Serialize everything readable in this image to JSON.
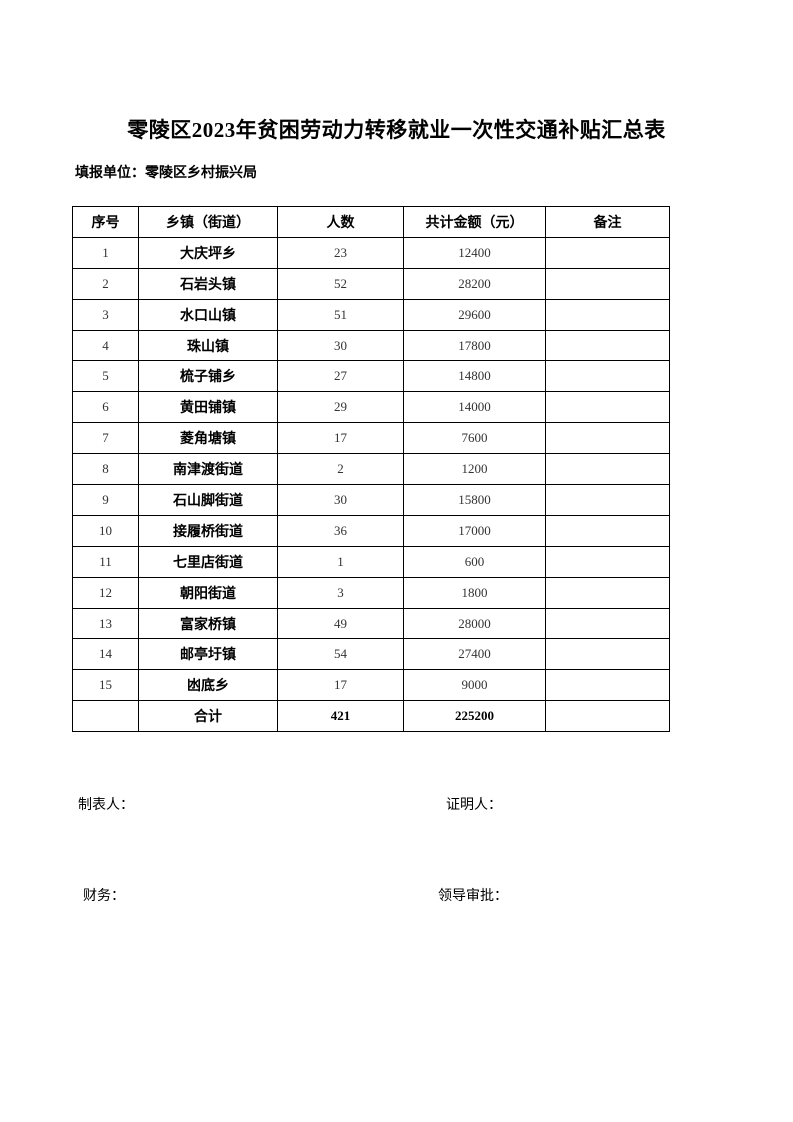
{
  "title": "零陵区2023年贫困劳动力转移就业一次性交通补贴汇总表",
  "unit": "填报单位：零陵区乡村振兴局",
  "table": {
    "headers": [
      "序号",
      "乡镇（街道）",
      "人数",
      "共计金额（元）",
      "备注"
    ],
    "rows": [
      [
        "1",
        "大庆坪乡",
        "23",
        "12400",
        ""
      ],
      [
        "2",
        "石岩头镇",
        "52",
        "28200",
        ""
      ],
      [
        "3",
        "水口山镇",
        "51",
        "29600",
        ""
      ],
      [
        "4",
        "珠山镇",
        "30",
        "17800",
        ""
      ],
      [
        "5",
        "梳子铺乡",
        "27",
        "14800",
        ""
      ],
      [
        "6",
        "黄田铺镇",
        "29",
        "14000",
        ""
      ],
      [
        "7",
        "菱角塘镇",
        "17",
        "7600",
        ""
      ],
      [
        "8",
        "南津渡街道",
        "2",
        "1200",
        ""
      ],
      [
        "9",
        "石山脚街道",
        "30",
        "15800",
        ""
      ],
      [
        "10",
        "接履桥街道",
        "36",
        "17000",
        ""
      ],
      [
        "11",
        "七里店街道",
        "1",
        "600",
        ""
      ],
      [
        "12",
        "朝阳街道",
        "3",
        "1800",
        ""
      ],
      [
        "13",
        "富家桥镇",
        "49",
        "28000",
        ""
      ],
      [
        "14",
        "邮亭圩镇",
        "54",
        "27400",
        ""
      ],
      [
        "15",
        "凼底乡",
        "17",
        "9000",
        ""
      ]
    ],
    "total": [
      "",
      "合计",
      "421",
      "225200",
      ""
    ]
  },
  "footer": {
    "preparer": "制表人：",
    "witness": "证明人：",
    "finance": "财务：",
    "approval": "领导审批："
  }
}
